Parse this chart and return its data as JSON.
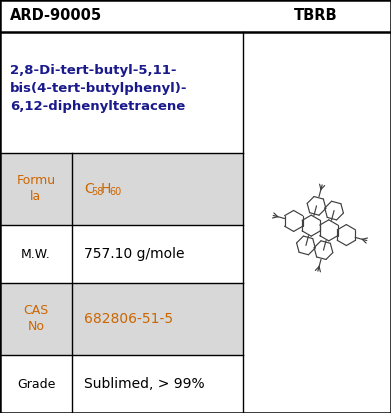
{
  "title_left": "ARD-90005",
  "title_right": "TBRB",
  "compound_name": "2,8-Di-tert-butyl-5,11-\nbis(4-tert-butylphenyl)-\n6,12-diphenyltetracene",
  "formula_label": "Formu\nla",
  "mw_label": "M.W.",
  "mw_value": "757.10 g/mole",
  "cas_label": "CAS\nNo",
  "cas_value": "682806-51-5",
  "grade_label": "Grade",
  "grade_value": "Sublimed, > 99%",
  "bg_color": "#ffffff",
  "row_shaded": "#d8d8d8",
  "border_color": "#000000",
  "title_color": "#000000",
  "name_color": "#1a1a8c",
  "orange_color": "#cc6600",
  "black_color": "#000000",
  "mol_color": "#404040",
  "fig_w": 3.91,
  "fig_h": 4.13,
  "dpi": 100
}
